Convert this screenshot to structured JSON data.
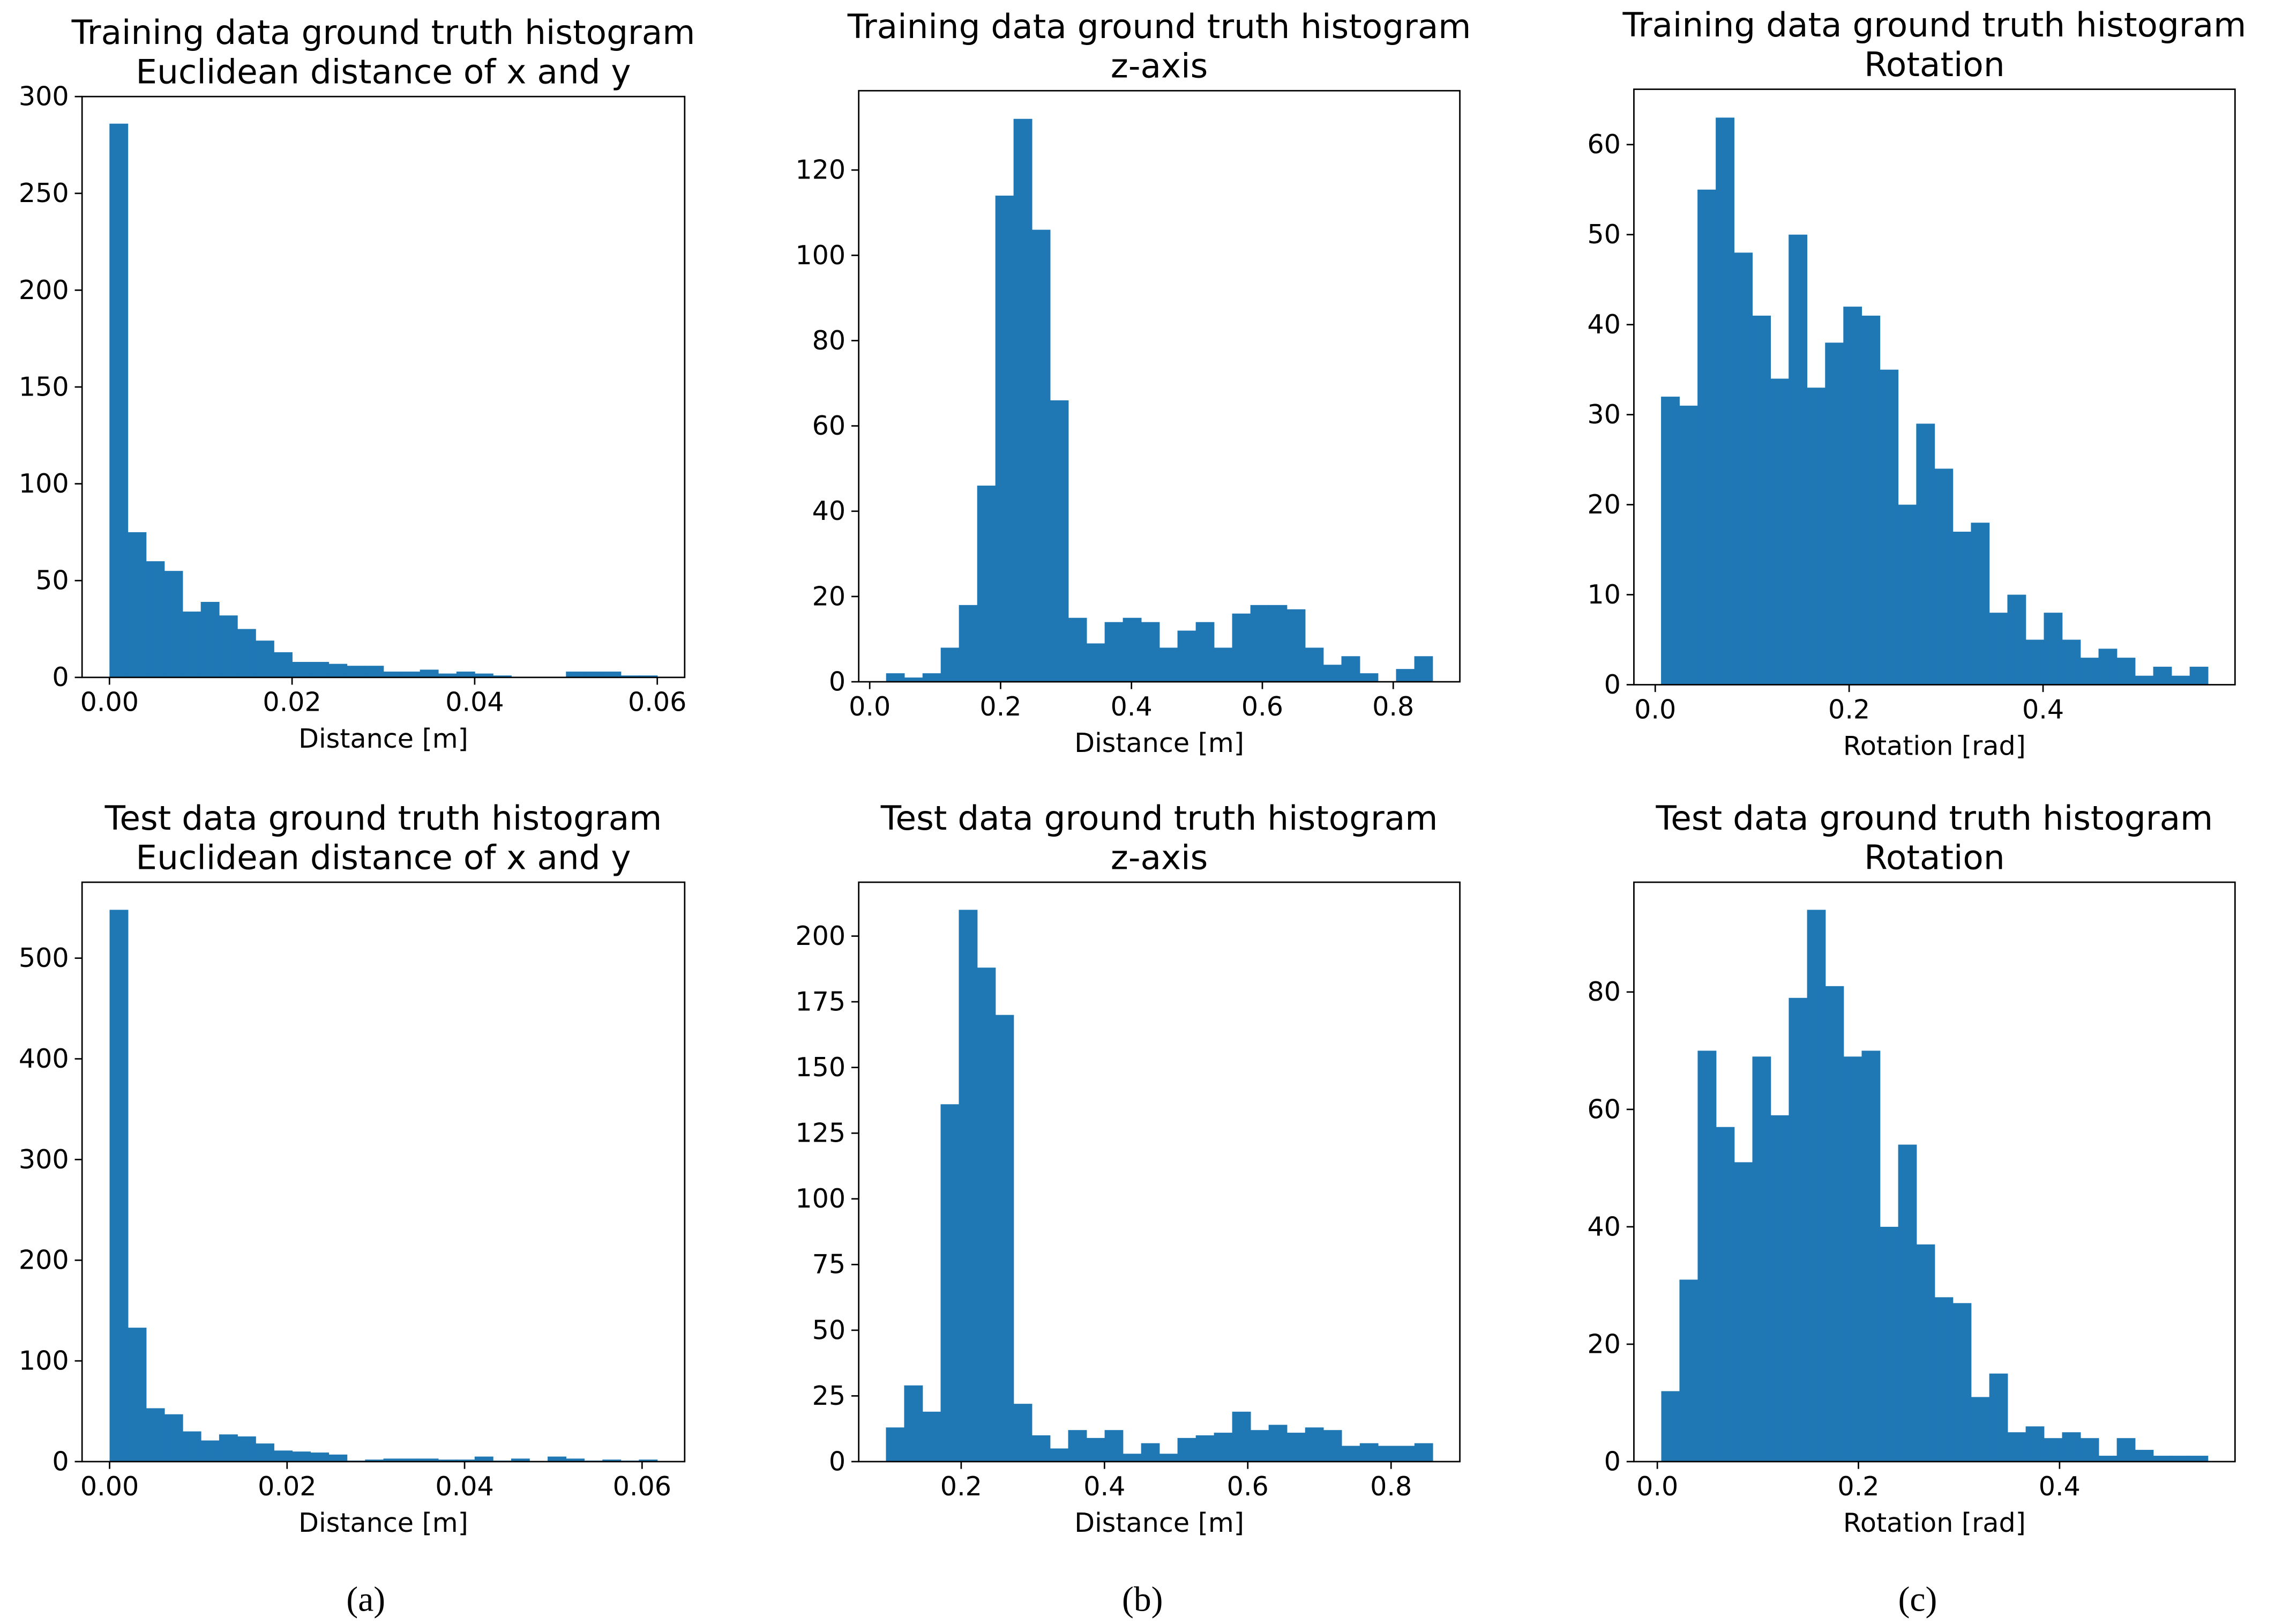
{
  "chart_data": [
    {
      "type": "histogram",
      "title": "Training data ground truth histogram",
      "subtitle": "Euclidean distance of x and y",
      "xlabel": "Distance [m]",
      "color": "#1f77b4",
      "bins": [
        0,
        0.002,
        0.004,
        0.006,
        0.008,
        0.01,
        0.012,
        0.014,
        0.016,
        0.018,
        0.02,
        0.022,
        0.024,
        0.026,
        0.028,
        0.03,
        0.032,
        0.034,
        0.036,
        0.038,
        0.04,
        0.042,
        0.044,
        0.046,
        0.048,
        0.05,
        0.052,
        0.054,
        0.056,
        0.058,
        0.06
      ],
      "counts": [
        286,
        75,
        60,
        55,
        34,
        39,
        32,
        25,
        19,
        13,
        8,
        8,
        7,
        6,
        6,
        3,
        3,
        4,
        2,
        3,
        2,
        1,
        0,
        0,
        0,
        3,
        3,
        3,
        1,
        1
      ],
      "xlim": [
        -0.003,
        0.063
      ],
      "ylim": [
        0,
        300
      ],
      "xticks": [
        {
          "value": 0,
          "label": "0.00"
        },
        0.02,
        0.04,
        0.06
      ],
      "yticks": [
        0,
        50,
        100,
        150,
        200,
        250,
        300
      ]
    },
    {
      "type": "histogram",
      "title": "Training data ground truth histogram",
      "subtitle": "z-axis",
      "xlabel": "Distance [m]",
      "color": "#1f77b4",
      "bins": [
        0.025,
        0.0528,
        0.0807,
        0.1085,
        0.1363,
        0.1642,
        0.192,
        0.2198,
        0.2477,
        0.2755,
        0.3033,
        0.3312,
        0.359,
        0.3868,
        0.4147,
        0.4425,
        0.4703,
        0.4982,
        0.526,
        0.5538,
        0.5817,
        0.6095,
        0.6373,
        0.6652,
        0.693,
        0.7208,
        0.7487,
        0.7765,
        0.8043,
        0.8322,
        0.86
      ],
      "counts": [
        2,
        1,
        2,
        8,
        18,
        46,
        114,
        132,
        106,
        66,
        15,
        9,
        14,
        15,
        14,
        8,
        12,
        14,
        8,
        16,
        18,
        18,
        17,
        8,
        4,
        6,
        2,
        0,
        3,
        6
      ],
      "xlim": [
        -0.0168,
        0.9018
      ],
      "ylim": [
        0,
        138.6
      ],
      "xticks": [
        {
          "value": 0,
          "label": "0.0"
        },
        0.2,
        0.4,
        0.6,
        0.8
      ],
      "yticks": [
        0,
        20,
        40,
        60,
        80,
        100,
        120
      ]
    },
    {
      "type": "histogram",
      "title": "Training data ground truth histogram",
      "subtitle": "Rotation",
      "xlabel": "Rotation [rad]",
      "color": "#1f77b4",
      "bins": [
        0.006,
        0.0248,
        0.0436,
        0.0624,
        0.0812,
        0.1,
        0.1188,
        0.1376,
        0.1564,
        0.1752,
        0.194,
        0.2128,
        0.2316,
        0.2504,
        0.2692,
        0.288,
        0.3068,
        0.3256,
        0.3444,
        0.3632,
        0.382,
        0.4008,
        0.4196,
        0.4384,
        0.4572,
        0.476,
        0.4948,
        0.5136,
        0.5324,
        0.5512,
        0.57
      ],
      "counts": [
        32,
        31,
        55,
        63,
        48,
        41,
        34,
        50,
        33,
        38,
        42,
        41,
        35,
        20,
        29,
        24,
        17,
        18,
        8,
        10,
        5,
        8,
        5,
        3,
        4,
        3,
        1,
        2,
        1,
        2
      ],
      "xlim": [
        -0.022,
        0.598
      ],
      "ylim": [
        0,
        66.15
      ],
      "xticks": [
        {
          "value": 0,
          "label": "0.0"
        },
        0.2,
        0.4
      ],
      "yticks": [
        0,
        10,
        20,
        30,
        40,
        50,
        60
      ]
    },
    {
      "type": "histogram",
      "title": "Test data ground truth histogram",
      "subtitle": "Euclidean distance of x and y",
      "xlabel": "Distance [m]",
      "color": "#1f77b4",
      "bins": [
        0,
        0.00206,
        0.00411,
        0.00617,
        0.00823,
        0.01028,
        0.01234,
        0.0144,
        0.01645,
        0.01851,
        0.02057,
        0.02262,
        0.02468,
        0.02674,
        0.02879,
        0.03085,
        0.03291,
        0.03496,
        0.03702,
        0.03908,
        0.04113,
        0.04319,
        0.04525,
        0.0473,
        0.04936,
        0.05142,
        0.05347,
        0.05553,
        0.05759,
        0.05964,
        0.0617
      ],
      "counts": [
        548,
        133,
        53,
        47,
        30,
        21,
        27,
        25,
        18,
        11,
        10,
        9,
        7,
        1,
        2,
        3,
        3,
        3,
        2,
        2,
        5,
        1,
        3,
        0,
        5,
        3,
        1,
        2,
        1,
        2
      ],
      "xlim": [
        -0.0031,
        0.0648
      ],
      "ylim": [
        0,
        575.4
      ],
      "xticks": [
        {
          "value": 0,
          "label": "0.00"
        },
        0.02,
        0.04,
        0.06
      ],
      "yticks": [
        0,
        100,
        200,
        300,
        400,
        500
      ]
    },
    {
      "type": "histogram",
      "title": "Test data ground truth histogram",
      "subtitle": "z-axis",
      "xlabel": "Distance [m]",
      "color": "#1f77b4",
      "bins": [
        0.095,
        0.1204,
        0.1459,
        0.1713,
        0.1967,
        0.2222,
        0.2476,
        0.273,
        0.2985,
        0.3239,
        0.3493,
        0.3748,
        0.4002,
        0.4256,
        0.4511,
        0.4765,
        0.5019,
        0.5274,
        0.5528,
        0.5782,
        0.6037,
        0.6291,
        0.6545,
        0.68,
        0.7054,
        0.7308,
        0.7563,
        0.7817,
        0.8071,
        0.8326,
        0.858
      ],
      "counts": [
        13,
        29,
        19,
        136,
        210,
        188,
        170,
        22,
        10,
        5,
        12,
        9,
        12,
        3,
        7,
        3,
        9,
        10,
        11,
        19,
        12,
        14,
        11,
        13,
        12,
        6,
        7,
        6,
        6,
        7
      ],
      "xlim": [
        0.057,
        0.896
      ],
      "ylim": [
        0,
        220.5
      ],
      "xticks": [
        0.2,
        0.4,
        0.6,
        0.8
      ],
      "yticks": [
        0,
        25,
        50,
        75,
        100,
        125,
        150,
        175,
        200
      ]
    },
    {
      "type": "histogram",
      "title": "Test data ground truth histogram",
      "subtitle": "Rotation",
      "xlabel": "Rotation [rad]",
      "color": "#1f77b4",
      "bins": [
        0.0039,
        0.022,
        0.0401,
        0.0583,
        0.0764,
        0.0945,
        0.1126,
        0.1307,
        0.1489,
        0.167,
        0.1851,
        0.2032,
        0.2213,
        0.2395,
        0.2576,
        0.2757,
        0.2938,
        0.3119,
        0.3301,
        0.3482,
        0.3663,
        0.3844,
        0.4025,
        0.4207,
        0.4388,
        0.4569,
        0.475,
        0.4931,
        0.5113,
        0.5294,
        0.5474
      ],
      "counts": [
        12,
        31,
        70,
        57,
        51,
        69,
        59,
        79,
        94,
        81,
        69,
        70,
        40,
        54,
        37,
        28,
        27,
        11,
        15,
        5,
        6,
        4,
        5,
        4,
        1,
        4,
        2,
        1,
        1,
        1
      ],
      "xlim": [
        -0.0233,
        0.5745
      ],
      "ylim": [
        0,
        98.7
      ],
      "xticks": [
        {
          "value": 0,
          "label": "0.0"
        },
        0.2,
        0.4
      ],
      "yticks": [
        0,
        20,
        40,
        60,
        80
      ]
    }
  ],
  "panel_labels": [
    "(a)",
    "(b)",
    "(c)"
  ]
}
